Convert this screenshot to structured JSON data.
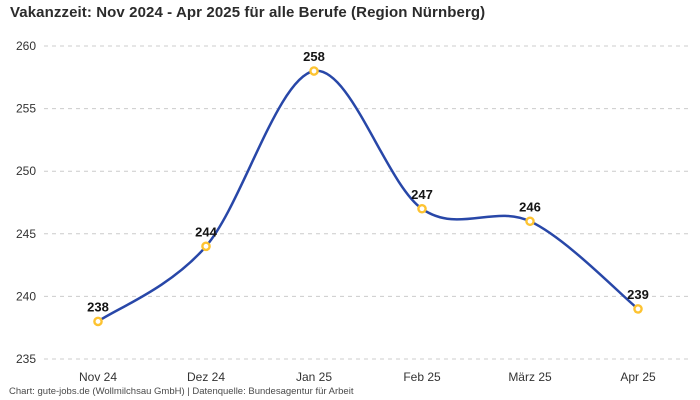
{
  "chart_data": {
    "type": "line",
    "curve": "spline",
    "title": "Vakanzzeit: Nov 2024 - Apr 2025 für alle Berufe (Region Nürnberg)",
    "categories": [
      "Nov 24",
      "Dez 24",
      "Jan 25",
      "Feb 25",
      "März 25",
      "Apr 25"
    ],
    "values": [
      238,
      244,
      258,
      247,
      246,
      239
    ],
    "xlabel": "",
    "ylabel": "",
    "ylim": [
      235,
      260
    ],
    "yticks": [
      235,
      240,
      245,
      250,
      255,
      260
    ],
    "grid": "dashed-horizontal-only",
    "legend": "none",
    "data_labels_visible": true
  },
  "colors": {
    "line": "#2847a8",
    "marker_ring": "#fdc331",
    "marker_fill": "#ffffff",
    "grid": "#cccccc",
    "title_text": "#2b2b2b",
    "axis_text": "#333333",
    "data_label_text": "#141414",
    "footer_text": "#4a4a4a",
    "background": "#ffffff"
  },
  "footer": {
    "attribution": "Chart: gute-jobs.de (Wollmilchsau GmbH) | Datenquelle: Bundesagentur für Arbeit"
  }
}
